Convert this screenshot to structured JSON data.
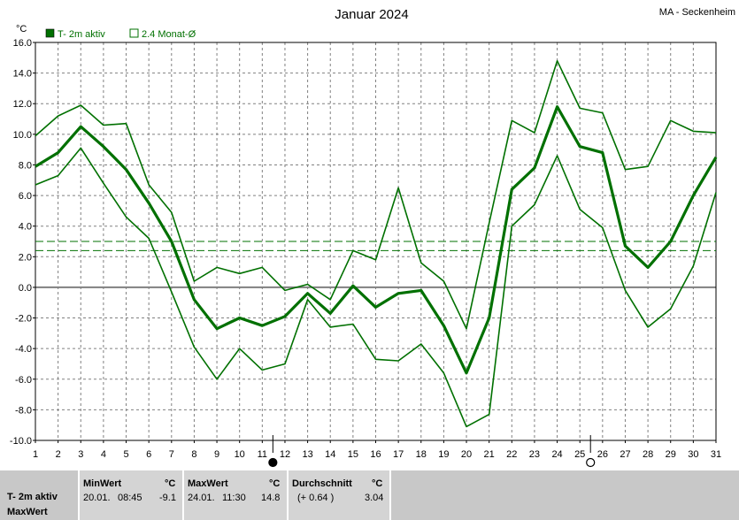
{
  "header": {
    "title": "Januar 2024",
    "station": "MA - Seckenheim"
  },
  "chart_data": {
    "type": "line",
    "title": "Januar 2024",
    "ylabel": "°C",
    "ylim": [
      -10,
      16
    ],
    "yticks": [
      "16.0",
      "14.0",
      "12.0",
      "10.0",
      "8.0",
      "6.0",
      "4.0",
      "2.0",
      "0.0",
      "-2.0",
      "-4.0",
      "-6.0",
      "-8.0",
      "-10.0"
    ],
    "x": [
      1,
      2,
      3,
      4,
      5,
      6,
      7,
      8,
      9,
      10,
      11,
      12,
      13,
      14,
      15,
      16,
      17,
      18,
      19,
      20,
      21,
      22,
      23,
      24,
      25,
      26,
      27,
      28,
      29,
      30,
      31
    ],
    "grid": true,
    "legend": [
      "T- 2m aktiv",
      "2.4 Monat-Ø"
    ],
    "series": [
      {
        "name": "T- 2m aktiv",
        "role": "mean",
        "color": "#007000",
        "values": [
          7.9,
          8.8,
          10.5,
          9.2,
          7.7,
          5.5,
          3.0,
          -0.8,
          -2.7,
          -2.0,
          -2.5,
          -1.9,
          -0.4,
          -1.7,
          0.1,
          -1.3,
          -0.4,
          -0.2,
          -2.5,
          -5.6,
          -2.0,
          6.4,
          7.8,
          11.8,
          9.2,
          8.8,
          2.7,
          1.3,
          3.0,
          6.0,
          8.5
        ]
      },
      {
        "role": "max",
        "color": "#007000",
        "values": [
          9.9,
          11.2,
          11.9,
          10.6,
          10.7,
          6.7,
          4.9,
          0.4,
          1.3,
          0.9,
          1.3,
          -0.2,
          0.2,
          -0.8,
          2.4,
          1.8,
          6.5,
          1.6,
          0.4,
          -2.7,
          4.2,
          10.9,
          10.1,
          14.8,
          11.7,
          11.4,
          7.7,
          7.9,
          10.9,
          10.2,
          10.1
        ]
      },
      {
        "role": "min",
        "color": "#007000",
        "values": [
          6.7,
          7.3,
          9.1,
          6.8,
          4.6,
          3.2,
          -0.3,
          -3.9,
          -6.0,
          -4.0,
          -5.4,
          -5.0,
          -0.8,
          -2.6,
          -2.4,
          -4.7,
          -4.8,
          -3.7,
          -5.6,
          -9.1,
          -8.3,
          4.0,
          5.4,
          8.6,
          5.1,
          3.9,
          -0.2,
          -2.6,
          -1.4,
          1.4,
          6.2
        ]
      }
    ],
    "reference_lines": [
      {
        "value": 3.0,
        "color": "#007000",
        "style": "dashed"
      },
      {
        "value": 2.4,
        "color": "#007000",
        "style": "dashed"
      }
    ],
    "moon_phases": [
      {
        "day": 11,
        "phase": "new-moon"
      },
      {
        "day": 25,
        "phase": "full-moon"
      }
    ]
  },
  "stats": {
    "row_label_1": "T- 2m aktiv",
    "row_label_2": "MaxWert",
    "min_header": "MinWert",
    "min_unit": "°C",
    "min_date": "20.01.",
    "min_time": "08:45",
    "min_value": "-9.1",
    "max_header": "MaxWert",
    "max_unit": "°C",
    "max_date": "24.01.",
    "max_time": "11:30",
    "max_value": "14.8",
    "avg_header": "Durchschnitt",
    "avg_unit": "°C",
    "avg_diff": "(+ 0.64 )",
    "avg_value": "3.04"
  }
}
